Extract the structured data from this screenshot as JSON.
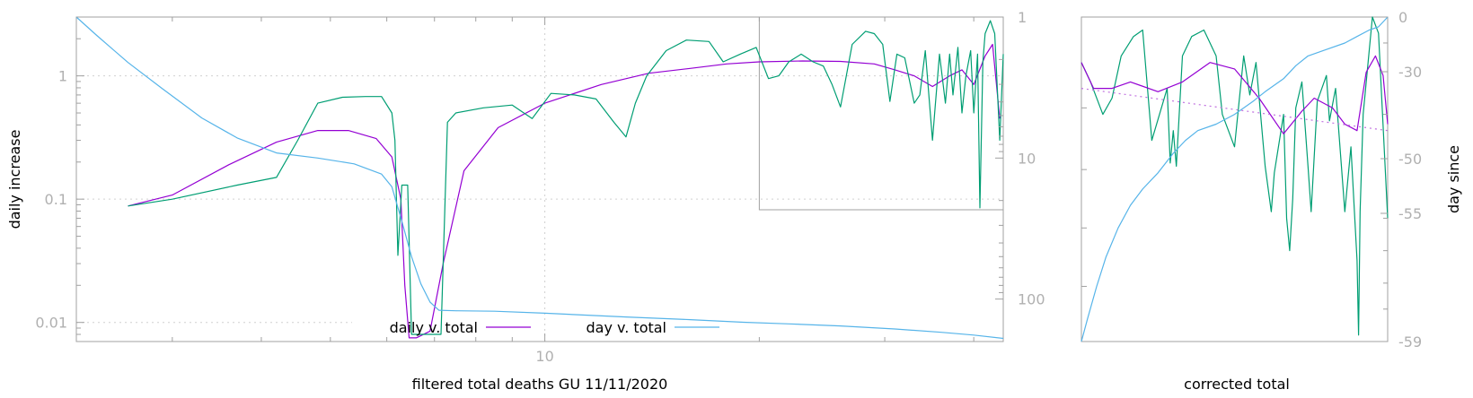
{
  "chart_data": [
    {
      "type": "line",
      "xlabel": "filtered total deaths GU 11/11/2020",
      "ylabel": "daily increase",
      "y2label": "",
      "x_scale": "log",
      "y_scale": "log",
      "y2_scale": "log",
      "y2_reversed": true,
      "xlim": [
        2.2,
        44
      ],
      "ylim": [
        0.007,
        3
      ],
      "y2lim": [
        1,
        200
      ],
      "x_ticks": [
        "10"
      ],
      "y_ticks": [
        "1",
        "0.1",
        "0.01"
      ],
      "y2_ticks": [
        "1",
        "10",
        "100"
      ],
      "grid": true,
      "legend_position": "bottom-center",
      "series": [
        {
          "name": "daily v. total",
          "color": "#9400d3",
          "axis": "y",
          "x": [
            2.6,
            3.0,
            3.6,
            4.2,
            4.8,
            5.3,
            5.8,
            6.1,
            6.28,
            6.36,
            6.45,
            6.6,
            6.9,
            7.2,
            7.7,
            8.6,
            10,
            12,
            14,
            16,
            18,
            20,
            23,
            26,
            29,
            31,
            33,
            35,
            37,
            38.5,
            40,
            41.5,
            42.5,
            43.5
          ],
          "y": [
            0.088,
            0.108,
            0.19,
            0.29,
            0.36,
            0.36,
            0.31,
            0.22,
            0.1,
            0.02,
            0.0075,
            0.0075,
            0.0085,
            0.03,
            0.17,
            0.38,
            0.6,
            0.85,
            1.05,
            1.15,
            1.25,
            1.3,
            1.32,
            1.31,
            1.25,
            1.12,
            1.0,
            0.82,
            1.0,
            1.12,
            0.85,
            1.45,
            1.8,
            0.45
          ]
        },
        {
          "name": "",
          "color": "#009e73",
          "axis": "y",
          "x": [
            2.6,
            3.0,
            3.7,
            4.2,
            4.5,
            4.8,
            5.2,
            5.6,
            5.9,
            6.1,
            6.16,
            6.22,
            6.3,
            6.35,
            6.42,
            6.5,
            6.9,
            7.15,
            7.3,
            7.5,
            8.2,
            9.0,
            9.6,
            10.2,
            11,
            11.8,
            12.5,
            13,
            13.4,
            13.9,
            14.8,
            15.8,
            17,
            17.8,
            18.8,
            19.8,
            20.6,
            21.3,
            22,
            22.9,
            23.8,
            24.6,
            25.3,
            26.0,
            27.0,
            28.2,
            29.0,
            29.8,
            30.5,
            31.2,
            32.0,
            33.0,
            33.6,
            34.2,
            35.0,
            35.3,
            35.8,
            36.5,
            37.0,
            37.4,
            38.0,
            38.5,
            39.0,
            39.6,
            40.0,
            40.5,
            40.8,
            41.2,
            41.5,
            42.2,
            42.8,
            43.5,
            44.0
          ],
          "y": [
            0.088,
            0.1,
            0.13,
            0.15,
            0.3,
            0.6,
            0.67,
            0.68,
            0.68,
            0.5,
            0.3,
            0.035,
            0.13,
            0.13,
            0.13,
            0.008,
            0.008,
            0.008,
            0.42,
            0.5,
            0.55,
            0.58,
            0.45,
            0.72,
            0.7,
            0.65,
            0.42,
            0.32,
            0.6,
            1.0,
            1.6,
            1.95,
            1.9,
            1.3,
            1.5,
            1.7,
            0.95,
            1.0,
            1.3,
            1.5,
            1.3,
            1.2,
            0.85,
            0.56,
            1.8,
            2.3,
            2.2,
            1.8,
            0.62,
            1.5,
            1.4,
            0.6,
            0.7,
            1.6,
            0.3,
            0.55,
            1.5,
            0.6,
            1.5,
            0.7,
            1.7,
            0.5,
            1.0,
            1.6,
            0.5,
            1.5,
            0.085,
            1.3,
            2.2,
            2.8,
            2.2,
            0.3,
            1.5
          ]
        },
        {
          "name": "day v. total",
          "color": "#56b4e9",
          "axis": "y2",
          "x": [
            2.2,
            2.35,
            2.6,
            2.9,
            3.3,
            3.7,
            4.2,
            4.8,
            5.4,
            5.9,
            6.1,
            6.3,
            6.5,
            6.7,
            6.9,
            7.1,
            7.5,
            8.5,
            10,
            13,
            16,
            19,
            22,
            26,
            31,
            36,
            40,
            44
          ],
          "y": [
            1,
            1.35,
            2.1,
            3.2,
            5.2,
            7.2,
            9.2,
            10,
            11,
            13,
            16,
            28,
            50,
            78,
            105,
            120,
            121,
            122,
            126,
            134,
            140,
            146,
            150,
            155,
            163,
            172,
            180,
            190
          ]
        }
      ]
    },
    {
      "type": "line",
      "xlabel": "corrected total",
      "ylabel": "",
      "y2label": "day since",
      "y2_scale": "linear",
      "y2_ticks": [
        "0",
        "-30",
        "-50",
        "-55",
        "-59"
      ],
      "y2lim": [
        -59,
        0
      ],
      "grid": false,
      "series": [
        {
          "name": "",
          "color": "#009e73",
          "axis": "y",
          "t": [
            0.0,
            0.03,
            0.07,
            0.1,
            0.13,
            0.17,
            0.2,
            0.23,
            0.28,
            0.29,
            0.3,
            0.31,
            0.33,
            0.36,
            0.4,
            0.44,
            0.46,
            0.5,
            0.53,
            0.55,
            0.57,
            0.6,
            0.62,
            0.63,
            0.66,
            0.67,
            0.68,
            0.69,
            0.7,
            0.72,
            0.74,
            0.75,
            0.77,
            0.8,
            0.81,
            0.83,
            0.86,
            0.88,
            0.9,
            0.905,
            0.91,
            0.92,
            0.95,
            0.97,
            1.0
          ],
          "v": [
            0.14,
            0.2,
            0.3,
            0.25,
            0.12,
            0.06,
            0.04,
            0.38,
            0.22,
            0.45,
            0.35,
            0.46,
            0.12,
            0.06,
            0.04,
            0.12,
            0.3,
            0.4,
            0.12,
            0.24,
            0.14,
            0.46,
            0.6,
            0.48,
            0.3,
            0.62,
            0.72,
            0.56,
            0.28,
            0.2,
            0.46,
            0.6,
            0.26,
            0.18,
            0.32,
            0.22,
            0.6,
            0.4,
            0.75,
            0.98,
            0.6,
            0.3,
            0.0,
            0.05,
            0.62
          ]
        },
        {
          "name": "",
          "color": "#9400d3",
          "axis": "y",
          "t": [
            0.0,
            0.04,
            0.1,
            0.16,
            0.25,
            0.33,
            0.42,
            0.5,
            0.58,
            0.66,
            0.72,
            0.76,
            0.82,
            0.86,
            0.9,
            0.93,
            0.96,
            0.985,
            1.0
          ],
          "v": [
            0.14,
            0.22,
            0.22,
            0.2,
            0.23,
            0.2,
            0.14,
            0.16,
            0.25,
            0.36,
            0.29,
            0.25,
            0.28,
            0.33,
            0.35,
            0.17,
            0.12,
            0.18,
            0.33
          ]
        },
        {
          "name": "",
          "color": "#56b4e9",
          "axis": "y2",
          "t": [
            0.0,
            0.02,
            0.05,
            0.08,
            0.12,
            0.16,
            0.2,
            0.25,
            0.3,
            0.34,
            0.38,
            0.44,
            0.5,
            0.56,
            0.6,
            0.66,
            0.7,
            0.74,
            0.8,
            0.86,
            0.9,
            0.94,
            0.97,
            1.0
          ],
          "v": [
            1.0,
            0.93,
            0.83,
            0.74,
            0.65,
            0.58,
            0.53,
            0.48,
            0.42,
            0.38,
            0.35,
            0.33,
            0.3,
            0.26,
            0.23,
            0.19,
            0.15,
            0.12,
            0.1,
            0.08,
            0.06,
            0.04,
            0.03,
            0.0
          ]
        },
        {
          "name": "",
          "color": "#c070e0",
          "style": "dotted",
          "axis": "y",
          "t": [
            0.0,
            1.0
          ],
          "v": [
            0.22,
            0.35
          ]
        }
      ]
    }
  ]
}
